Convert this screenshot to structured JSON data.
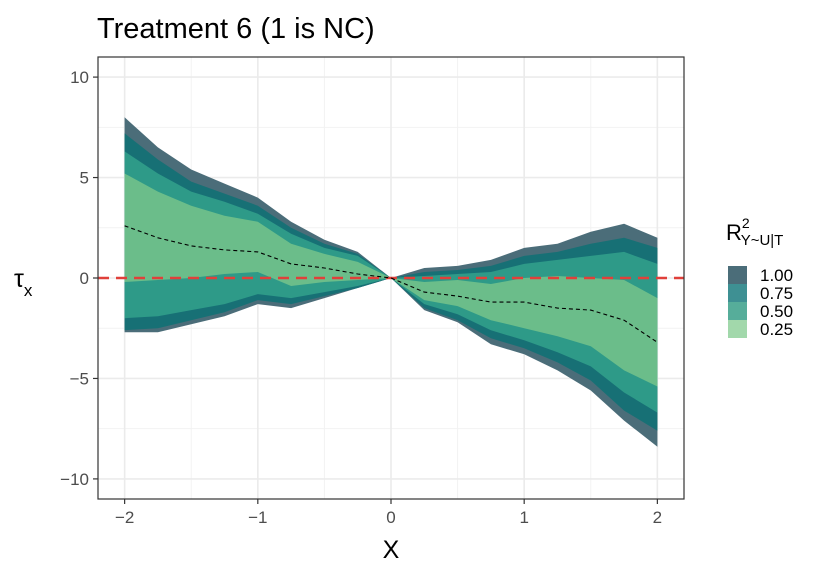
{
  "chart_data": {
    "type": "area",
    "title": "Treatment 6 (1 is NC)",
    "xlabel": "X",
    "ylabel": {
      "symbol": "τ",
      "subscript": "x"
    },
    "xlim": [
      -2.2,
      2.2
    ],
    "ylim": [
      -11,
      11
    ],
    "x_ticks": [
      -2,
      -1,
      0,
      1,
      2
    ],
    "x_tick_labels": [
      "−2",
      "−1",
      "0",
      "1",
      "2"
    ],
    "y_ticks": [
      -10,
      -5,
      0,
      5,
      10
    ],
    "y_tick_labels": [
      "−10",
      "−5",
      "0",
      "5",
      "10"
    ],
    "grid": true,
    "x": [
      -2,
      -1.75,
      -1.5,
      -1.25,
      -1,
      -0.75,
      -0.5,
      -0.25,
      0,
      0.25,
      0.5,
      0.75,
      1,
      1.25,
      1.5,
      1.75,
      2
    ],
    "estimate": [
      2.6,
      2.0,
      1.6,
      1.4,
      1.3,
      0.7,
      0.5,
      0.2,
      0,
      -0.7,
      -0.9,
      -1.2,
      -1.2,
      -1.5,
      -1.6,
      -2.1,
      -3.2
    ],
    "reference_line": {
      "y": 0,
      "color": "#e0403a",
      "style": "dashed"
    },
    "bands": [
      {
        "name": "1.00",
        "color": "#4b6d79",
        "upper": [
          8.0,
          6.5,
          5.4,
          4.7,
          4.0,
          2.8,
          1.9,
          1.3,
          0,
          0.5,
          0.6,
          0.9,
          1.5,
          1.7,
          2.3,
          2.7,
          2.0
        ],
        "lower": [
          -2.7,
          -2.7,
          -2.3,
          -1.9,
          -1.3,
          -1.5,
          -1.0,
          -0.5,
          0,
          -1.6,
          -2.2,
          -3.3,
          -3.8,
          -4.6,
          -5.6,
          -7.1,
          -8.4
        ]
      },
      {
        "name": "0.75",
        "color": "#177075",
        "upper": [
          7.2,
          5.9,
          4.8,
          4.2,
          3.6,
          2.5,
          1.7,
          1.2,
          0,
          0.3,
          0.4,
          0.6,
          1.1,
          1.3,
          1.7,
          2.0,
          1.5
        ],
        "lower": [
          -2.6,
          -2.5,
          -2.1,
          -1.7,
          -1.1,
          -1.3,
          -0.9,
          -0.5,
          0,
          -1.5,
          -2.1,
          -3.0,
          -3.5,
          -4.2,
          -5.1,
          -6.6,
          -7.6
        ]
      },
      {
        "name": "0.50",
        "color": "#2e9a88",
        "upper": [
          6.3,
          5.2,
          4.3,
          3.8,
          3.2,
          2.2,
          1.5,
          1.1,
          0,
          0.1,
          0.2,
          0.3,
          0.7,
          0.9,
          1.1,
          1.3,
          0.7
        ],
        "lower": [
          -2.0,
          -1.9,
          -1.6,
          -1.3,
          -0.8,
          -1.0,
          -0.7,
          -0.4,
          0,
          -1.3,
          -1.8,
          -2.6,
          -3.1,
          -3.7,
          -4.4,
          -5.7,
          -6.7
        ]
      },
      {
        "name": "0.25",
        "color": "#6bbd8a",
        "upper": [
          5.2,
          4.3,
          3.6,
          3.1,
          2.8,
          1.7,
          1.2,
          0.8,
          0,
          -0.2,
          -0.1,
          -0.3,
          0.0,
          0.1,
          0.0,
          -0.1,
          -1.0
        ],
        "lower": [
          -0.2,
          -0.1,
          0.0,
          0.2,
          0.3,
          -0.4,
          -0.2,
          -0.1,
          0,
          -1.1,
          -1.4,
          -2.1,
          -2.5,
          -2.9,
          -3.4,
          -4.6,
          -5.4
        ]
      }
    ],
    "legend": {
      "title": {
        "symbol": "R",
        "superscript": "2",
        "subscript": "Y~U|T"
      },
      "placement": "right",
      "entries": [
        {
          "label": "1.00",
          "color": "#4b6d79"
        },
        {
          "label": "0.75",
          "color": "#3e9093"
        },
        {
          "label": "0.50",
          "color": "#56ad9a"
        },
        {
          "label": "0.25",
          "color": "#a2d8ab"
        }
      ]
    }
  }
}
